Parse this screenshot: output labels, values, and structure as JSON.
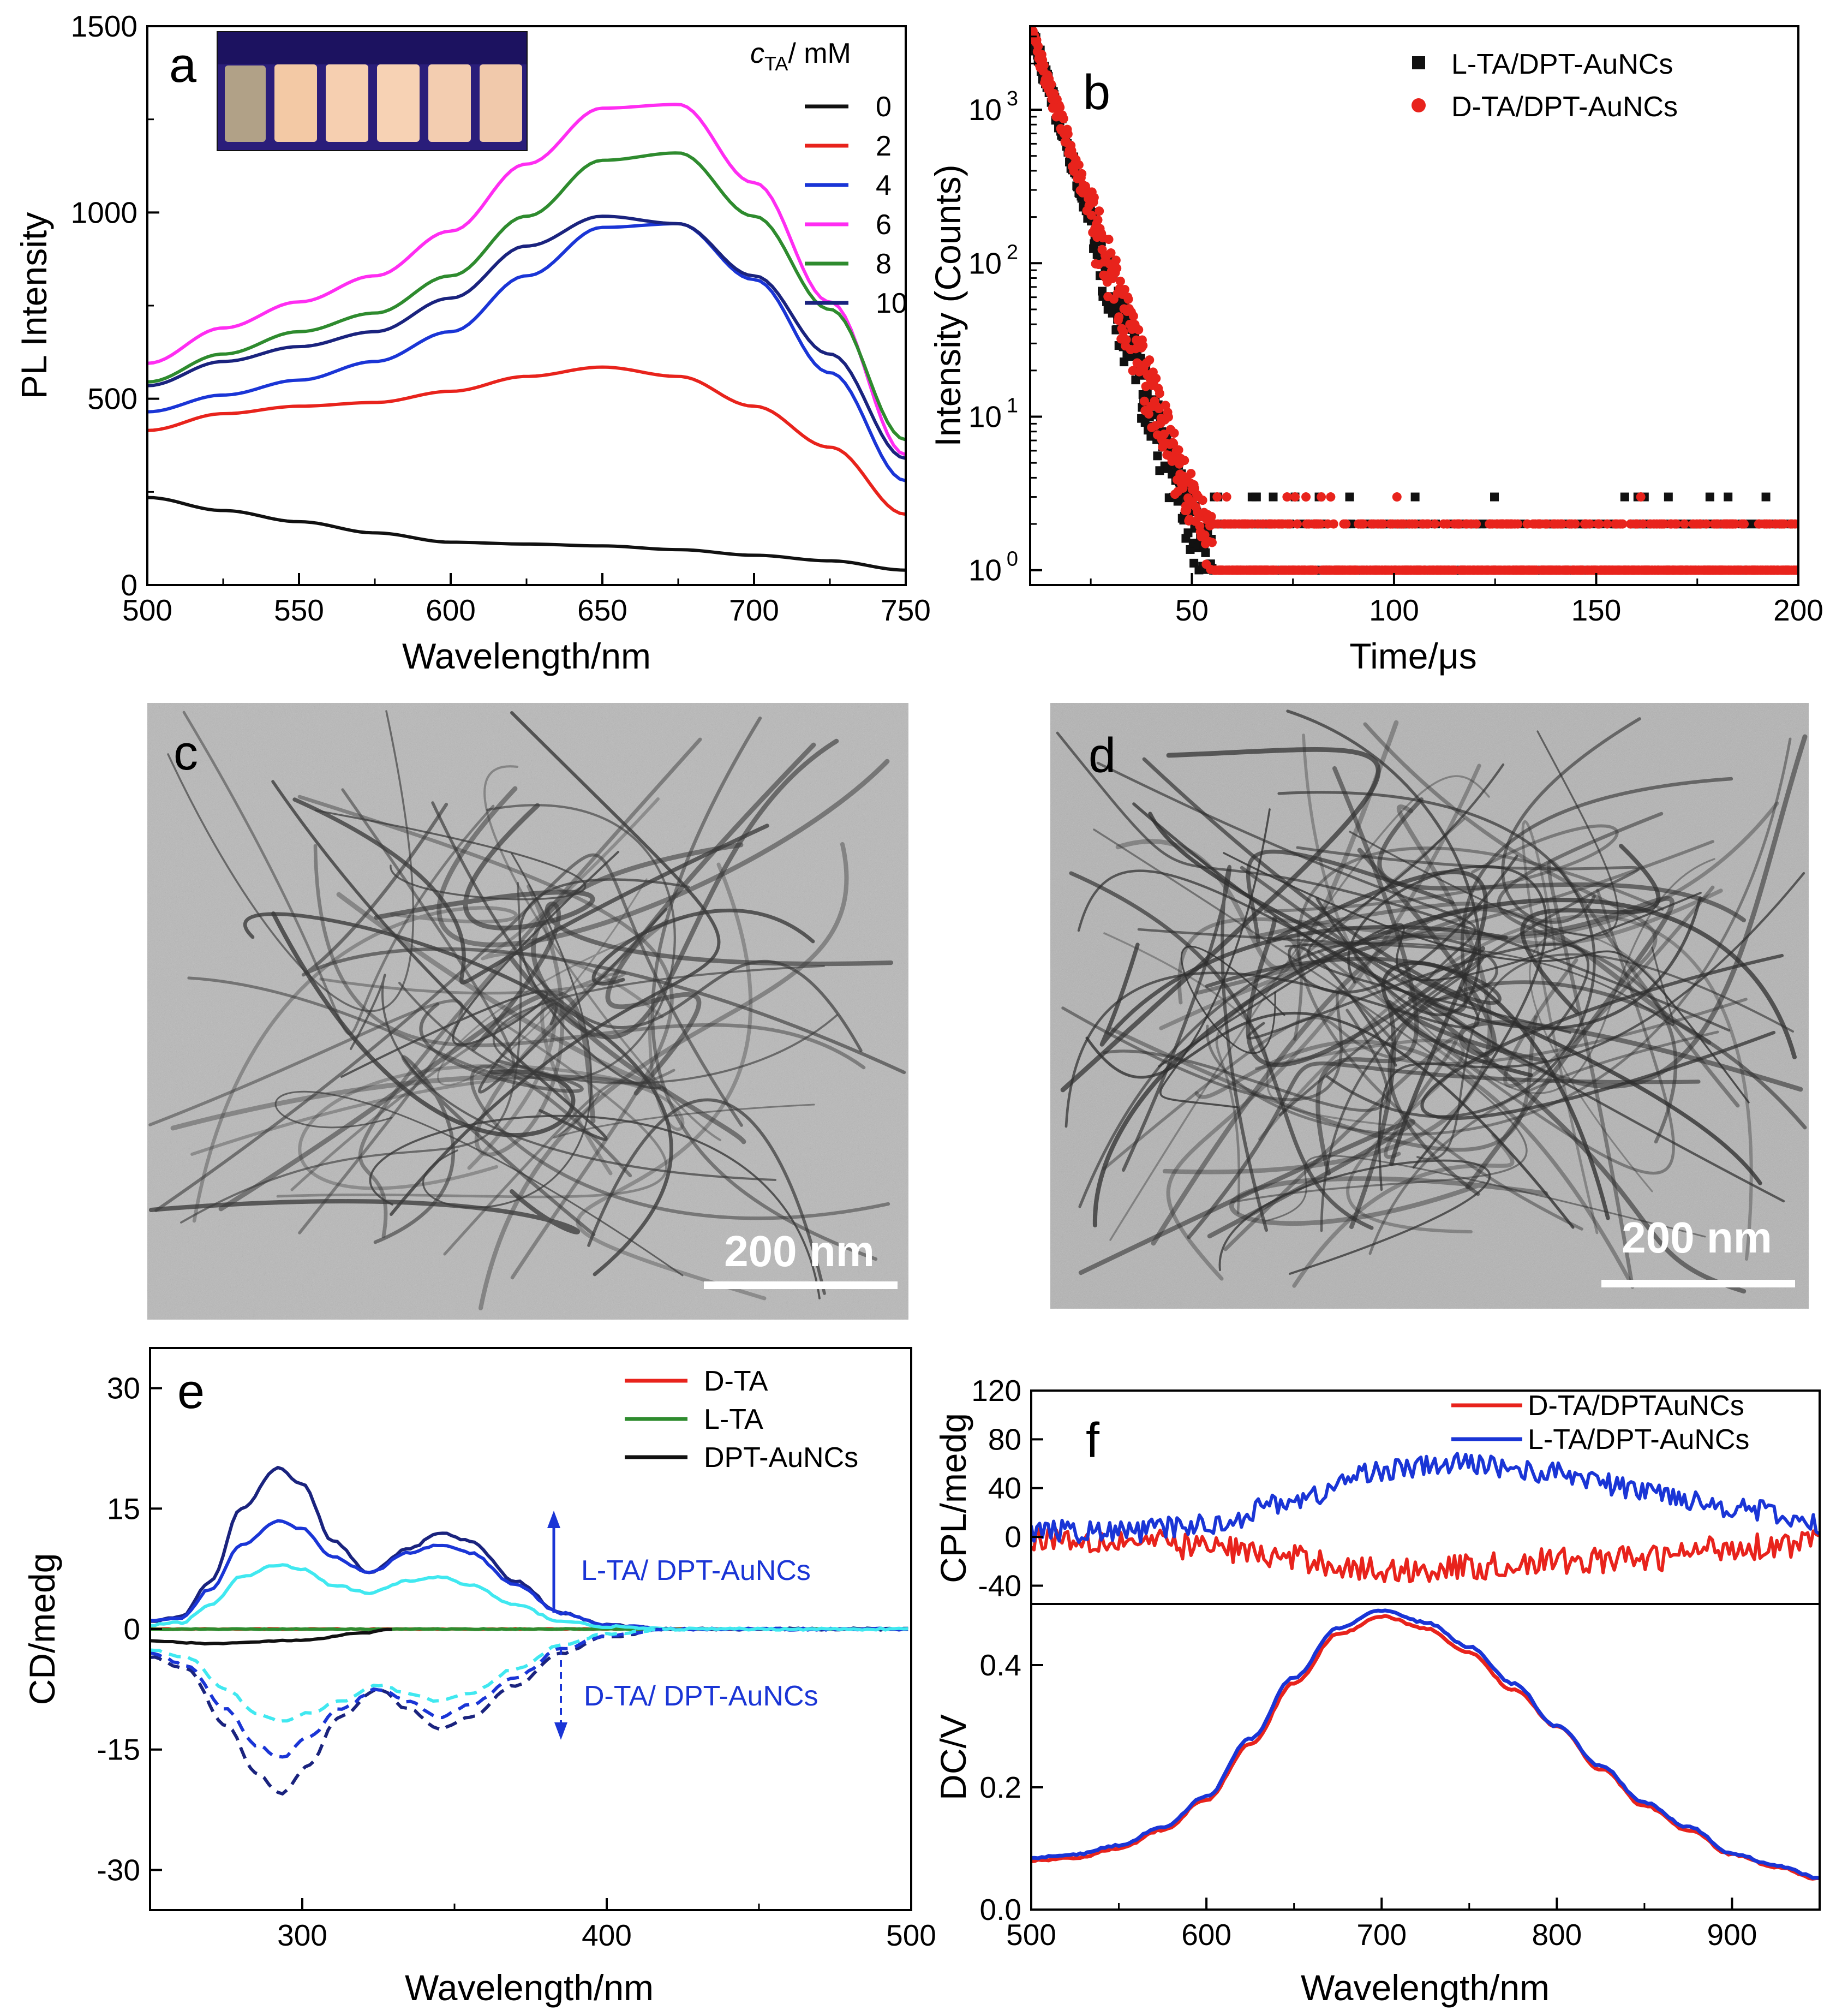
{
  "colors": {
    "black": "#111111",
    "red": "#e8231c",
    "blue": "#1a35d6",
    "magenta": "#ff2df2",
    "green": "#2e8b2e",
    "navy": "#1a237e",
    "cyan": "#40e8f0"
  },
  "chart_data": [
    {
      "id": "a",
      "type": "line",
      "panel_label": "a",
      "xlabel": "Wavelength/nm",
      "ylabel": "PL Intensity",
      "xlim": [
        500,
        750
      ],
      "ylim": [
        0,
        1500
      ],
      "xticks": [
        "500",
        "550",
        "600",
        "650",
        "700",
        "750"
      ],
      "yticks": [
        "0",
        "500",
        "1000",
        "1500"
      ],
      "legend_title": "c",
      "legend_title_sub": "TA",
      "legend_title_unit": "/ mM",
      "inset_description": "vial photo",
      "series": [
        {
          "name": "0",
          "color": "#111111",
          "x": [
            500,
            525,
            550,
            575,
            600,
            625,
            650,
            675,
            700,
            725,
            750
          ],
          "y": [
            235,
            200,
            170,
            140,
            115,
            110,
            105,
            95,
            80,
            65,
            40
          ]
        },
        {
          "name": "2",
          "color": "#e8231c",
          "x": [
            500,
            525,
            550,
            575,
            600,
            625,
            650,
            675,
            700,
            725,
            750
          ],
          "y": [
            415,
            460,
            480,
            490,
            520,
            560,
            585,
            560,
            480,
            370,
            190
          ]
        },
        {
          "name": "4",
          "color": "#1a35d6",
          "x": [
            500,
            525,
            550,
            575,
            600,
            625,
            650,
            675,
            700,
            725,
            750
          ],
          "y": [
            465,
            510,
            550,
            600,
            680,
            830,
            960,
            970,
            820,
            570,
            280
          ]
        },
        {
          "name": "6",
          "color": "#ff2df2",
          "x": [
            500,
            525,
            550,
            575,
            600,
            625,
            650,
            675,
            700,
            725,
            750
          ],
          "y": [
            595,
            690,
            760,
            830,
            950,
            1130,
            1280,
            1290,
            1080,
            760,
            350
          ]
        },
        {
          "name": "8",
          "color": "#2e8b2e",
          "x": [
            500,
            525,
            550,
            575,
            600,
            625,
            650,
            675,
            700,
            725,
            750
          ],
          "y": [
            545,
            620,
            680,
            730,
            830,
            990,
            1140,
            1160,
            990,
            740,
            390
          ]
        },
        {
          "name": "10",
          "color": "#1a237e",
          "x": [
            500,
            525,
            550,
            575,
            600,
            625,
            650,
            675,
            700,
            725,
            750
          ],
          "y": [
            535,
            600,
            640,
            680,
            770,
            910,
            990,
            970,
            830,
            620,
            340
          ]
        }
      ]
    },
    {
      "id": "b",
      "type": "scatter",
      "panel_label": "b",
      "xlabel": "Time/μs",
      "ylabel": "Intensity (Counts)",
      "yscale": "log",
      "xlim": [
        10,
        200
      ],
      "ylim": [
        0.8,
        3500
      ],
      "xticks": [
        "50",
        "100",
        "150",
        "200"
      ],
      "yticks": [
        "10",
        "10",
        "10",
        "10"
      ],
      "ytick_exponents": [
        "0",
        "1",
        "2",
        "3"
      ],
      "series": [
        {
          "name": "L-TA/DPT-AuNCs",
          "color": "#111111",
          "marker": "square",
          "decay_tau": 5.2,
          "noise_floor": [
            1,
            2,
            3
          ]
        },
        {
          "name": "D-TA/DPT-AuNCs",
          "color": "#e8231c",
          "marker": "circle",
          "decay_tau": 5.5,
          "noise_floor": [
            1,
            2,
            3
          ]
        }
      ]
    },
    {
      "id": "e",
      "type": "line",
      "panel_label": "e",
      "xlabel": "Wavelength/nm",
      "ylabel": "CD/medg",
      "xlim": [
        250,
        500
      ],
      "ylim": [
        -35,
        35
      ],
      "xticks": [
        "300",
        "400",
        "500"
      ],
      "yticks": [
        "-30",
        "-15",
        "0",
        "15",
        "30"
      ],
      "annotations": [
        "L-TA/ DPT-AuNCs",
        "D-TA/ DPT-AuNCs"
      ],
      "series": [
        {
          "name": "D-TA",
          "color": "#e8231c",
          "x": [
            250,
            300,
            350,
            400,
            450,
            500
          ],
          "y": [
            0,
            0,
            0,
            0,
            0,
            0
          ]
        },
        {
          "name": "L-TA",
          "color": "#2e8b2e",
          "x": [
            250,
            300,
            350,
            400,
            450,
            500
          ],
          "y": [
            0,
            0,
            0,
            0,
            0,
            0
          ]
        },
        {
          "name": "DPT-AuNCs",
          "color": "#111111",
          "x": [
            250,
            270,
            300,
            320,
            330
          ],
          "y": [
            -1.5,
            -1.8,
            -1.4,
            -0.5,
            0
          ]
        },
        {
          "name": "L-TA/DPT-AuNCs high",
          "color": "#1a237e",
          "x": [
            250,
            260,
            270,
            280,
            292,
            300,
            310,
            322,
            335,
            345,
            355,
            370,
            385,
            400,
            420,
            500
          ],
          "y": [
            1,
            1.5,
            6,
            15,
            20,
            18,
            11,
            7,
            10,
            12,
            11,
            6,
            2,
            0.5,
            0,
            0
          ]
        },
        {
          "name": "L-TA/DPT-AuNCs mid",
          "color": "#1a35d6",
          "x": [
            250,
            260,
            270,
            280,
            292,
            300,
            310,
            322,
            335,
            345,
            355,
            370,
            385,
            400,
            420,
            500
          ],
          "y": [
            1,
            1.3,
            5,
            10.5,
            13.5,
            12.5,
            9,
            7,
            9.5,
            10.5,
            9.5,
            5.5,
            2,
            0.5,
            0,
            0
          ]
        },
        {
          "name": "L-TA/DPT-AuNCs low",
          "color": "#40e8f0",
          "x": [
            250,
            260,
            270,
            280,
            292,
            300,
            310,
            322,
            335,
            345,
            355,
            370,
            385,
            400,
            420,
            500
          ],
          "y": [
            0.5,
            0.8,
            3,
            6.5,
            8,
            7.5,
            5.5,
            4.5,
            6,
            6.5,
            5.5,
            3,
            1,
            0.3,
            0,
            0
          ]
        },
        {
          "name": "D-TA/DPT-AuNCs high",
          "color": "#1a237e",
          "dashed": true,
          "x": [
            250,
            262,
            275,
            285,
            293,
            302,
            312,
            325,
            335,
            345,
            355,
            370,
            385,
            400,
            420
          ],
          "y": [
            -3.5,
            -5,
            -12,
            -18,
            -20.5,
            -17,
            -11,
            -7.5,
            -10,
            -12.5,
            -11,
            -7,
            -3,
            -1,
            0
          ]
        },
        {
          "name": "D-TA/DPT-AuNCs mid",
          "color": "#1a35d6",
          "dashed": true,
          "x": [
            250,
            262,
            275,
            285,
            293,
            302,
            312,
            325,
            335,
            345,
            355,
            370,
            385,
            400,
            420
          ],
          "y": [
            -3,
            -4.5,
            -10,
            -14.5,
            -16,
            -13.5,
            -10,
            -7.5,
            -9,
            -11,
            -9.5,
            -6,
            -2.5,
            -0.8,
            0
          ]
        },
        {
          "name": "D-TA/DPT-AuNCs low",
          "color": "#40e8f0",
          "dashed": true,
          "x": [
            250,
            262,
            275,
            285,
            293,
            302,
            312,
            325,
            335,
            345,
            355,
            370,
            385,
            400,
            420
          ],
          "y": [
            -2.5,
            -3.5,
            -7.5,
            -10.5,
            -11.5,
            -10.5,
            -9,
            -7,
            -8,
            -9,
            -8,
            -5,
            -2,
            -0.6,
            0
          ]
        }
      ]
    },
    {
      "id": "f_top",
      "type": "line",
      "panel_label": "f",
      "ylabel": "CPL/medg",
      "xlim": [
        500,
        950
      ],
      "ylim": [
        -55,
        120
      ],
      "yticks": [
        "-40",
        "0",
        "40",
        "80",
        "120"
      ],
      "series": [
        {
          "name": "D-TA/DPTAuNCs",
          "color": "#e8231c",
          "x": [
            500,
            550,
            600,
            650,
            700,
            750,
            800,
            850,
            900,
            950
          ],
          "y": [
            0,
            -3,
            -8,
            -18,
            -28,
            -25,
            -20,
            -18,
            -8,
            -5
          ]
        },
        {
          "name": "L-TA/DPT-AuNCs",
          "color": "#1a35d6",
          "x": [
            500,
            550,
            600,
            650,
            700,
            750,
            800,
            850,
            900,
            950
          ],
          "y": [
            5,
            4,
            10,
            30,
            55,
            60,
            52,
            38,
            25,
            10
          ]
        }
      ]
    },
    {
      "id": "f_bottom",
      "type": "line",
      "xlabel": "Wavelength/nm",
      "ylabel": "DC/V",
      "xlim": [
        500,
        950
      ],
      "ylim": [
        0,
        0.5
      ],
      "xticks": [
        "500",
        "600",
        "700",
        "800",
        "900"
      ],
      "yticks": [
        "0.0",
        "0.2",
        "0.4"
      ],
      "series": [
        {
          "name": "D-TA/DPTAuNCs",
          "color": "#e8231c",
          "x": [
            500,
            525,
            550,
            575,
            600,
            625,
            650,
            675,
            700,
            725,
            750,
            775,
            800,
            825,
            850,
            875,
            900,
            925,
            950
          ],
          "y": [
            0.08,
            0.085,
            0.1,
            0.13,
            0.18,
            0.27,
            0.37,
            0.45,
            0.48,
            0.46,
            0.42,
            0.36,
            0.3,
            0.23,
            0.17,
            0.13,
            0.09,
            0.07,
            0.05
          ]
        },
        {
          "name": "L-TA/DPT-AuNCs",
          "color": "#1a35d6",
          "x": [
            500,
            525,
            550,
            575,
            600,
            625,
            650,
            675,
            700,
            725,
            750,
            775,
            800,
            825,
            850,
            875,
            900,
            925,
            950
          ],
          "y": [
            0.085,
            0.09,
            0.105,
            0.135,
            0.185,
            0.28,
            0.38,
            0.46,
            0.49,
            0.47,
            0.43,
            0.37,
            0.3,
            0.235,
            0.175,
            0.135,
            0.092,
            0.072,
            0.052
          ]
        }
      ]
    }
  ],
  "micrographs": [
    {
      "id": "c",
      "panel_label": "c",
      "scale_bar": "200 nm"
    },
    {
      "id": "d",
      "panel_label": "d",
      "scale_bar": "200 nm"
    }
  ]
}
